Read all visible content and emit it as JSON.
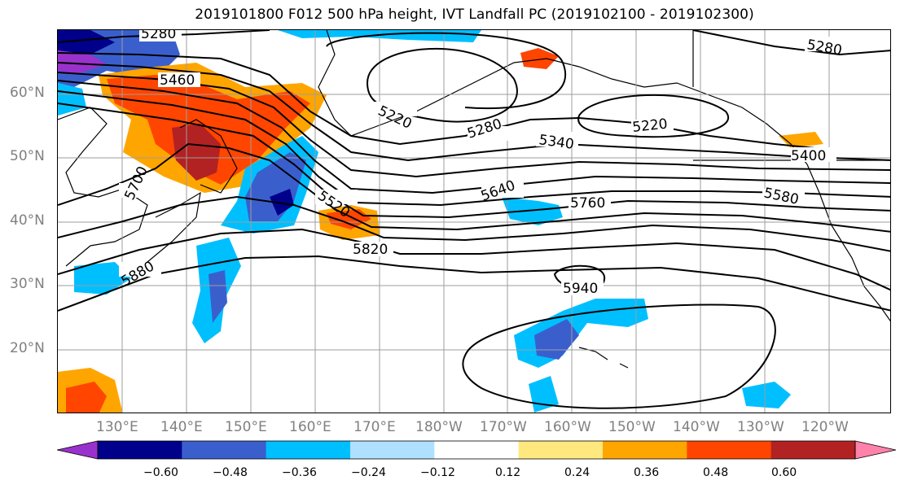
{
  "title": "2019101800 F012 500 hPa height, IVT Landfall PC (2019102100 - 2019102300)",
  "lat_labels": [
    "60°N",
    "50°N",
    "40°N",
    "30°N",
    "20°N"
  ],
  "lon_labels": [
    "130°E",
    "140°E",
    "150°E",
    "160°E",
    "170°E",
    "180°W",
    "170°W",
    "160°W",
    "150°W",
    "140°W",
    "130°W",
    "120°W"
  ],
  "contour_labels": {
    "c5280a": "5280",
    "c5460": "5460",
    "c5220a": "5220",
    "c5280b": "5280",
    "c5340": "5340",
    "c5220b": "5220",
    "c5280c": "5280",
    "c5400": "5400",
    "c5700": "5700",
    "c5520": "5520",
    "c5640": "5640",
    "c5760": "5760",
    "c5580": "5580",
    "c5820": "5820",
    "c5880": "5880",
    "c5940": "5940"
  },
  "colorbar": {
    "ticks": [
      "−0.60",
      "−0.48",
      "−0.36",
      "−0.24",
      "−0.12",
      "0.12",
      "0.24",
      "0.36",
      "0.48",
      "0.60"
    ],
    "colors": [
      "#9932cc",
      "#00008b",
      "#3a5fcd",
      "#00bfff",
      "#afe0ff",
      "#ffffff",
      "#ffe97f",
      "#ffa500",
      "#ff4500",
      "#b22222",
      "#ff82ab"
    ]
  }
}
